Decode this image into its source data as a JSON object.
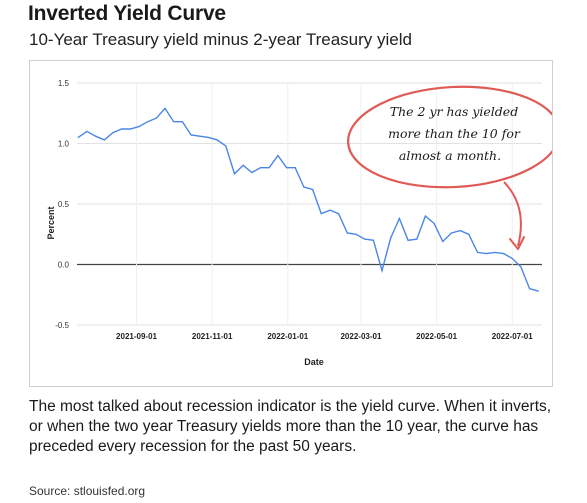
{
  "title": "Inverted Yield Curve",
  "subtitle": "10-Year Treasury yield minus 2-year Treasury yield",
  "caption": "The most talked about recession indicator is the yield curve. When it inverts, or when the two year Treasury yields more than the 10 year, the curve has preceded every recession for the past 50 years.",
  "source": "Source: stlouisfed.org",
  "annotation": {
    "lines": [
      "The 2 yr has yielded",
      "more than the 10 for",
      "almost a month."
    ],
    "circle_color": "#e05a55",
    "arrow_color": "#e05a55"
  },
  "chart_data": {
    "type": "line",
    "xlabel": "Date",
    "ylabel": "Percent",
    "ylim": [
      -0.5,
      1.5
    ],
    "y_ticks": [
      1.5,
      1.0,
      0.5,
      0.0,
      -0.5
    ],
    "y_tick_labels": [
      "1.5",
      "1.0",
      "0.5",
      "0.0",
      "-0.5"
    ],
    "x_ticks": [
      "2021-09-01",
      "2021-11-01",
      "2022-01-01",
      "2022-03-01",
      "2022-05-01",
      "2022-07-01"
    ],
    "x_range": [
      "2021-07-15",
      "2022-07-25"
    ],
    "grid": true,
    "line_color": "#4a86e8",
    "zero_line": true,
    "series": [
      {
        "x": [
          "2021-07-16",
          "2021-07-23",
          "2021-07-30",
          "2021-08-06",
          "2021-08-13",
          "2021-08-20",
          "2021-08-27",
          "2021-09-03",
          "2021-09-10",
          "2021-09-17",
          "2021-09-24",
          "2021-10-01",
          "2021-10-08",
          "2021-10-15",
          "2021-10-22",
          "2021-10-29",
          "2021-11-05",
          "2021-11-12",
          "2021-11-19",
          "2021-11-26",
          "2021-12-03",
          "2021-12-10",
          "2021-12-17",
          "2021-12-24",
          "2021-12-31",
          "2022-01-07",
          "2022-01-14",
          "2022-01-21",
          "2022-01-28",
          "2022-02-04",
          "2022-02-11",
          "2022-02-18",
          "2022-02-25",
          "2022-03-04",
          "2022-03-11",
          "2022-03-18",
          "2022-03-25",
          "2022-04-01",
          "2022-04-08",
          "2022-04-15",
          "2022-04-22",
          "2022-04-29",
          "2022-05-06",
          "2022-05-13",
          "2022-05-20",
          "2022-05-27",
          "2022-06-03",
          "2022-06-10",
          "2022-06-17",
          "2022-06-24",
          "2022-07-01",
          "2022-07-08",
          "2022-07-15",
          "2022-07-22"
        ],
        "values": [
          1.05,
          1.1,
          1.06,
          1.03,
          1.09,
          1.12,
          1.12,
          1.14,
          1.18,
          1.21,
          1.29,
          1.18,
          1.18,
          1.07,
          1.06,
          1.05,
          1.03,
          0.98,
          0.75,
          0.82,
          0.76,
          0.8,
          0.8,
          0.9,
          0.8,
          0.8,
          0.64,
          0.62,
          0.42,
          0.45,
          0.42,
          0.26,
          0.25,
          0.21,
          0.2,
          -0.05,
          0.22,
          0.38,
          0.2,
          0.21,
          0.4,
          0.34,
          0.19,
          0.26,
          0.28,
          0.25,
          0.1,
          0.09,
          0.1,
          0.09,
          0.05,
          -0.02,
          -0.2,
          -0.22
        ]
      }
    ]
  }
}
